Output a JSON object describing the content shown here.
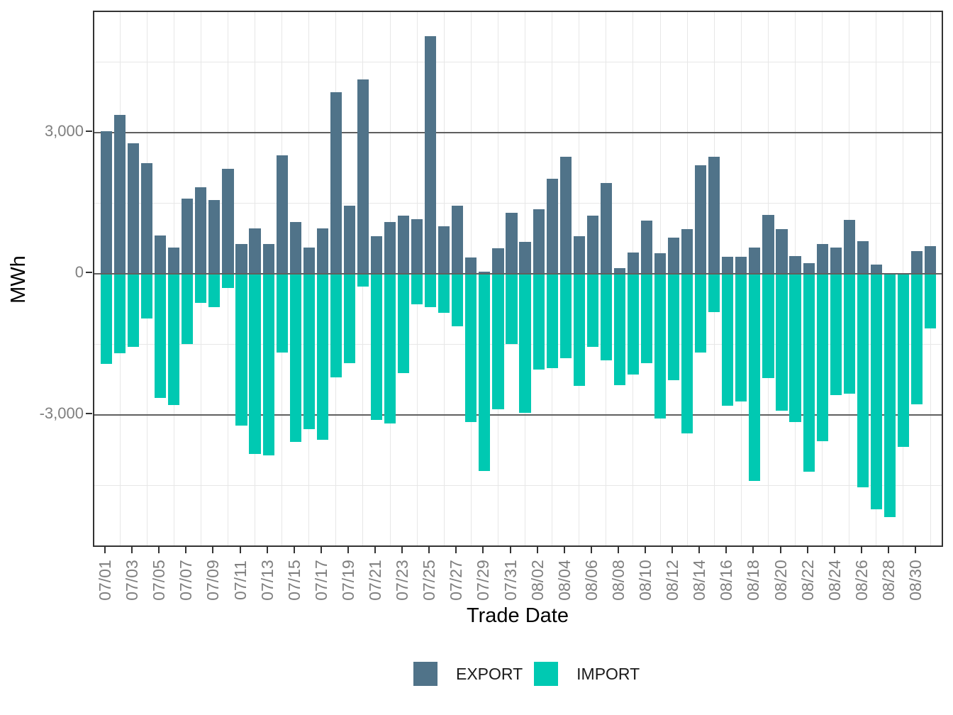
{
  "chart_data": {
    "type": "bar",
    "title": "",
    "xlabel": "Trade Date",
    "ylabel": "MWh",
    "ylim": [
      -5830,
      5570
    ],
    "grid": {
      "y_major": [
        3000,
        0,
        -3000
      ],
      "y_minor": [
        4500,
        1500,
        -1500,
        -4500
      ],
      "x_minor_between_ticks": true
    },
    "y_ticks": [
      {
        "value": 3000,
        "label": "3,000"
      },
      {
        "value": 0,
        "label": "0"
      },
      {
        "value": -3000,
        "label": "-3,000"
      }
    ],
    "x_tick_every": 2,
    "legend_position": "bottom",
    "categories": [
      "07/01",
      "07/02",
      "07/03",
      "07/04",
      "07/05",
      "07/06",
      "07/07",
      "07/08",
      "07/09",
      "07/10",
      "07/11",
      "07/12",
      "07/13",
      "07/14",
      "07/15",
      "07/16",
      "07/17",
      "07/18",
      "07/19",
      "07/20",
      "07/21",
      "07/22",
      "07/23",
      "07/24",
      "07/25",
      "07/26",
      "07/27",
      "07/28",
      "07/29",
      "07/30",
      "07/31",
      "08/01",
      "08/02",
      "08/03",
      "08/04",
      "08/05",
      "08/06",
      "08/07",
      "08/08",
      "08/09",
      "08/10",
      "08/11",
      "08/12",
      "08/13",
      "08/14",
      "08/15",
      "08/16",
      "08/17",
      "08/18",
      "08/19",
      "08/20",
      "08/21",
      "08/22",
      "08/23",
      "08/24",
      "08/25",
      "08/26",
      "08/27",
      "08/28",
      "08/29",
      "08/30",
      "08/31"
    ],
    "series": [
      {
        "name": "EXPORT",
        "color": "#507389",
        "values": [
          3040,
          3390,
          2780,
          2360,
          820,
          560,
          1600,
          1840,
          1570,
          2230,
          640,
          970,
          640,
          2530,
          1100,
          570,
          970,
          3870,
          1450,
          4140,
          810,
          1100,
          1240,
          1170,
          5050,
          1010,
          1460,
          350,
          50,
          550,
          1300,
          680,
          1380,
          2030,
          2490,
          810,
          1240,
          1940,
          120,
          460,
          1130,
          440,
          770,
          950,
          2320,
          2500,
          370,
          370,
          570,
          1260,
          950,
          390,
          230,
          640,
          560,
          1150,
          700,
          200,
          0,
          0,
          490,
          600
        ]
      },
      {
        "name": "IMPORT",
        "color": "#00C9B2",
        "values": [
          -1910,
          -1690,
          -1550,
          -950,
          -2630,
          -2780,
          -1480,
          -620,
          -700,
          -290,
          -3220,
          -3830,
          -3860,
          -1670,
          -3570,
          -3290,
          -3520,
          -2200,
          -1900,
          -260,
          -3100,
          -3170,
          -2110,
          -640,
          -700,
          -820,
          -1110,
          -3150,
          -4190,
          -2880,
          -1480,
          -2950,
          -2030,
          -2000,
          -1790,
          -2380,
          -1540,
          -1840,
          -2360,
          -2140,
          -1890,
          -3070,
          -2250,
          -3380,
          -1670,
          -810,
          -2800,
          -2710,
          -4390,
          -2210,
          -2910,
          -3150,
          -4200,
          -3560,
          -2580,
          -2540,
          -4530,
          -5000,
          -5160,
          -3670,
          -2770,
          -1150
        ]
      }
    ]
  },
  "colors": {
    "export_bar": "#507389",
    "import_bar": "#00C9B2",
    "grid_major": "#5f5f5f",
    "grid_minor": "#e7e7e7",
    "panel_border": "#333333",
    "tick_mark": "#333333",
    "tick_label": "#7f7f7f",
    "axis_title": "#000000",
    "background": "#ffffff"
  }
}
